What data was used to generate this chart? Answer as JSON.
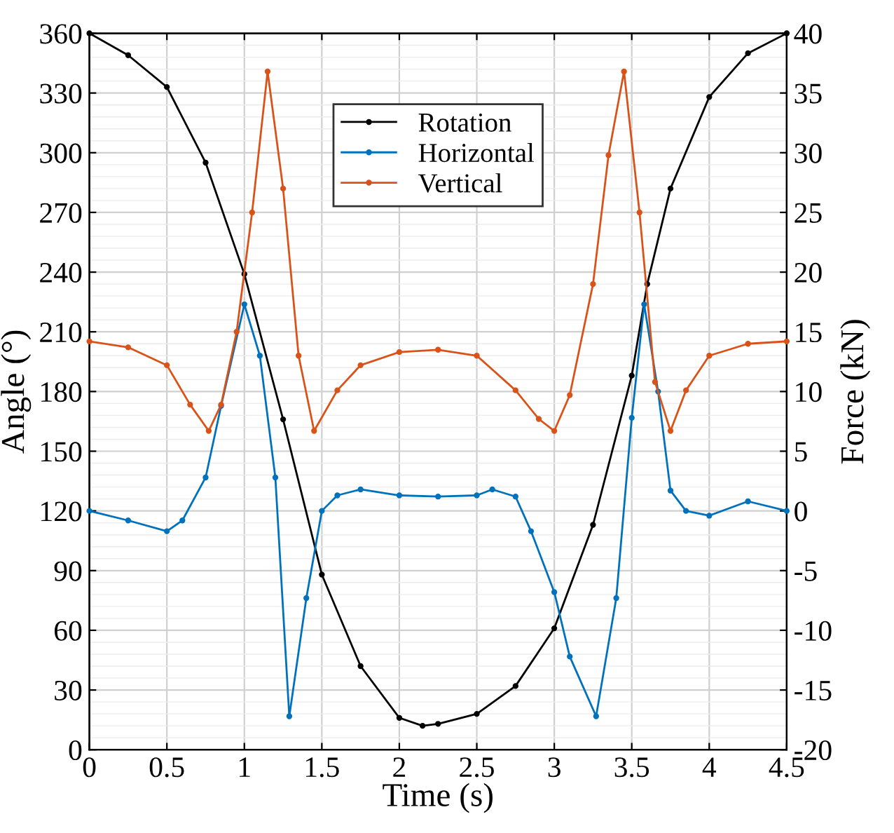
{
  "chart_data": {
    "type": "line",
    "xlabel": "Time (s)",
    "ylabel": "Angle (°)",
    "y2label": "Force (kN)",
    "xlim": [
      0,
      4.5
    ],
    "xticks": [
      0,
      0.5,
      1,
      1.5,
      2,
      2.5,
      3,
      3.5,
      4,
      4.5
    ],
    "ylim": [
      0,
      360
    ],
    "yticks": [
      0,
      30,
      60,
      90,
      120,
      150,
      180,
      210,
      240,
      270,
      300,
      330,
      360
    ],
    "y2lim": [
      -20,
      40
    ],
    "y2ticks": [
      -20,
      -15,
      -10,
      -5,
      0,
      5,
      10,
      15,
      20,
      25,
      30,
      35,
      40
    ],
    "grid": true,
    "legend": "top",
    "marker": "circle",
    "line_style": "solid",
    "series": [
      {
        "name": "Rotation",
        "color": "#000000",
        "x": [
          0,
          0.25,
          0.5,
          0.75,
          1.0,
          1.25,
          1.5,
          1.75,
          2.0,
          2.15,
          2.25,
          2.5,
          2.75,
          3.0,
          3.25,
          3.5,
          3.6,
          3.75,
          4.0,
          4.25,
          4.5
        ],
        "values": [
          360,
          349,
          333,
          295,
          239,
          166,
          88,
          42,
          16,
          12,
          13,
          18,
          32,
          61,
          113,
          188,
          234,
          282,
          328,
          350,
          360
        ]
      },
      {
        "name": "Horizontal",
        "color": "#0072bd",
        "axis": "y2",
        "x": [
          0,
          0.25,
          0.5,
          0.6,
          0.75,
          0.85,
          1.0,
          1.1,
          1.2,
          1.29,
          1.4,
          1.5,
          1.6,
          1.75,
          2.0,
          2.25,
          2.5,
          2.6,
          2.75,
          2.85,
          3.0,
          3.1,
          3.27,
          3.4,
          3.5,
          3.58,
          3.67,
          3.75,
          3.85,
          4.0,
          4.25,
          4.5
        ],
        "values": [
          0,
          -0.8,
          -1.7,
          -0.8,
          2.8,
          8.8,
          17.3,
          13,
          2.8,
          -17.2,
          -7.3,
          0,
          1.3,
          1.8,
          1.3,
          1.2,
          1.3,
          1.8,
          1.2,
          -1.7,
          -6.8,
          -12.2,
          -17.2,
          -7.3,
          7.8,
          17.3,
          10,
          1.7,
          0,
          -0.4,
          0.8,
          0
        ]
      },
      {
        "name": "Vertical",
        "color": "#d95319",
        "axis": "y2",
        "x": [
          0,
          0.25,
          0.5,
          0.65,
          0.77,
          0.85,
          0.95,
          1.05,
          1.15,
          1.25,
          1.35,
          1.45,
          1.6,
          1.75,
          2.0,
          2.25,
          2.5,
          2.75,
          2.9,
          3.0,
          3.1,
          3.25,
          3.35,
          3.45,
          3.55,
          3.65,
          3.75,
          3.85,
          4.0,
          4.25,
          4.5
        ],
        "values": [
          14.2,
          13.7,
          12.2,
          8.9,
          6.7,
          8.9,
          15,
          25,
          36.8,
          27,
          13,
          6.7,
          10.1,
          12.2,
          13.3,
          13.5,
          13,
          10.1,
          7.7,
          6.7,
          9.7,
          19,
          29.8,
          36.8,
          25,
          10.8,
          6.7,
          10.1,
          13,
          14,
          14.2
        ]
      }
    ]
  }
}
